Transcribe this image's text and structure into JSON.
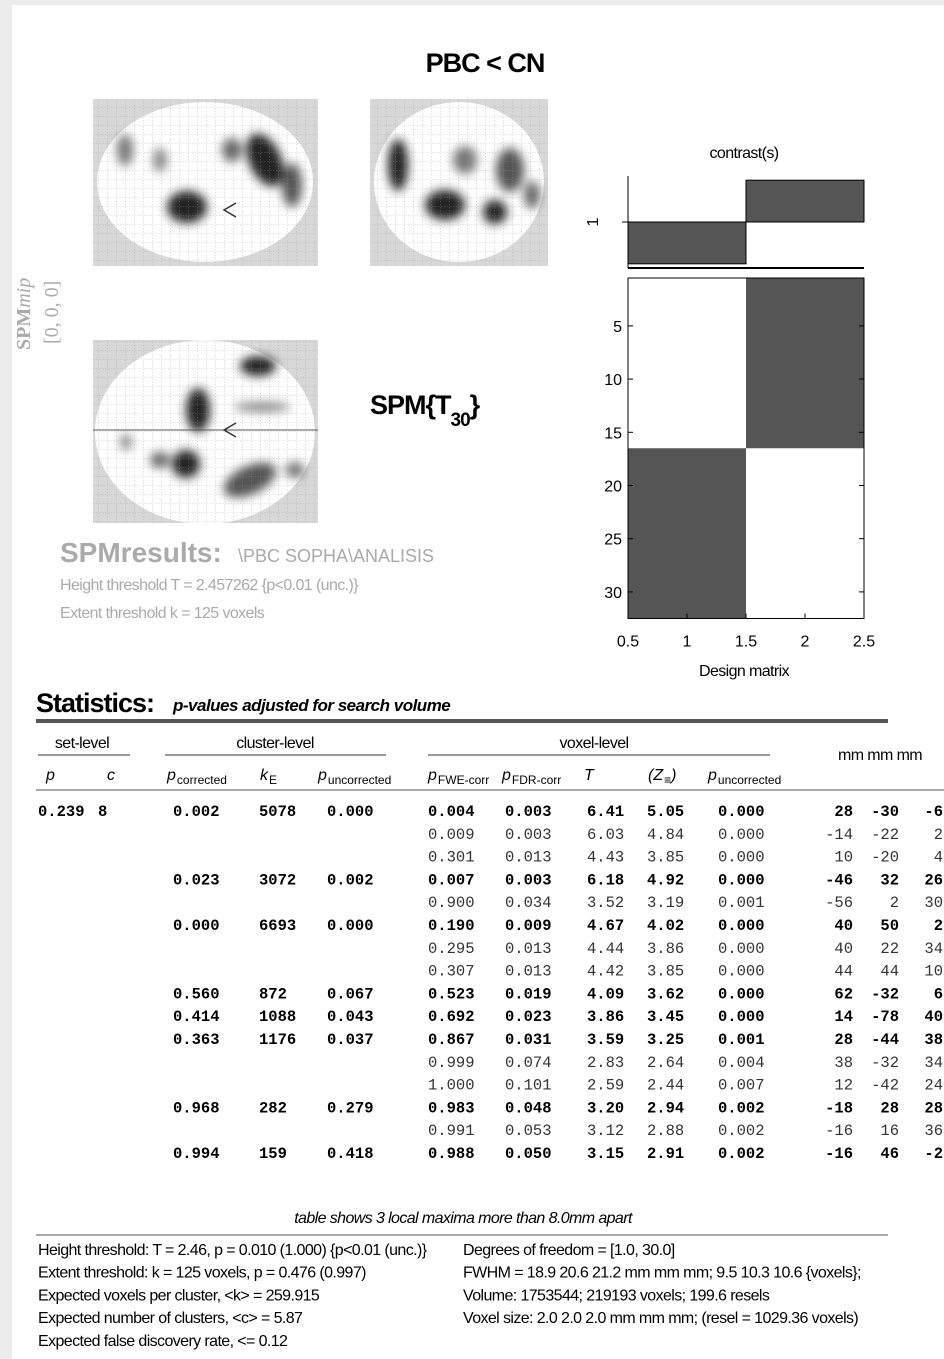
{
  "header": {
    "title": "PBC < CN"
  },
  "mip": {
    "label_main": "SPM",
    "label_italic": "mip",
    "coords": "[0, 0, 0]"
  },
  "stat": {
    "text": "SPM{T",
    "sub": "30",
    "close": "}"
  },
  "results": {
    "title": "SPMresults:",
    "path": "\\PBC SOPHA\\ANALISIS",
    "height": "Height threshold T = 2.457262  {p<0.01 (unc.)}",
    "extent": "Extent threshold k = 125 voxels"
  },
  "contrast": {
    "title": "contrast(s)",
    "label": "1",
    "values": [
      -1,
      1
    ],
    "ylim": [
      -1.1,
      1.1
    ]
  },
  "design_matrix": {
    "xlabel": "Design matrix",
    "xlim": [
      0.5,
      2.5
    ],
    "ylim": [
      0.5,
      32.5
    ],
    "xticks": [
      0.5,
      1,
      1.5,
      2,
      2.5
    ],
    "yticks": [
      5,
      10,
      15,
      20,
      25,
      30
    ],
    "blocks": [
      {
        "x": [
          0.5,
          1.5
        ],
        "y": [
          16.5,
          32.5
        ]
      },
      {
        "x": [
          1.5,
          2.5
        ],
        "y": [
          0.5,
          16.5
        ]
      }
    ]
  },
  "statistics": {
    "title": "Statistics:",
    "subtitle": "p-values adjusted for search volume",
    "groups": [
      "set-level",
      "cluster-level",
      "voxel-level"
    ],
    "coords_header": "mm mm mm",
    "columns": [
      {
        "main": "p"
      },
      {
        "main": "c"
      },
      {
        "main": "p",
        "sub": "corrected"
      },
      {
        "main": "k",
        "sub": "E"
      },
      {
        "main": "p",
        "sub": "uncorrected"
      },
      {
        "main": "p",
        "sub": "FWE-corr"
      },
      {
        "main": "p",
        "sub": "FDR-corr"
      },
      {
        "main": "T"
      },
      {
        "main": "(Z",
        "sub": "≡",
        "close": ")"
      },
      {
        "main": "p",
        "sub": "uncorrected"
      }
    ],
    "rows": [
      [
        "0.239",
        "8",
        "0.002",
        "5078",
        "0.000",
        "0.004",
        "0.003",
        "6.41",
        "5.05",
        "0.000",
        "28",
        "-30",
        "-6"
      ],
      [
        null,
        null,
        null,
        null,
        null,
        "0.009",
        "0.003",
        "6.03",
        "4.84",
        "0.000",
        "-14",
        "-22",
        "2"
      ],
      [
        null,
        null,
        null,
        null,
        null,
        "0.301",
        "0.013",
        "4.43",
        "3.85",
        "0.000",
        "10",
        "-20",
        "4"
      ],
      [
        null,
        null,
        "0.023",
        "3072",
        "0.002",
        "0.007",
        "0.003",
        "6.18",
        "4.92",
        "0.000",
        "-46",
        "32",
        "26"
      ],
      [
        null,
        null,
        null,
        null,
        null,
        "0.900",
        "0.034",
        "3.52",
        "3.19",
        "0.001",
        "-56",
        "2",
        "30"
      ],
      [
        null,
        null,
        "0.000",
        "6693",
        "0.000",
        "0.190",
        "0.009",
        "4.67",
        "4.02",
        "0.000",
        "40",
        "50",
        "2"
      ],
      [
        null,
        null,
        null,
        null,
        null,
        "0.295",
        "0.013",
        "4.44",
        "3.86",
        "0.000",
        "40",
        "22",
        "34"
      ],
      [
        null,
        null,
        null,
        null,
        null,
        "0.307",
        "0.013",
        "4.42",
        "3.85",
        "0.000",
        "44",
        "44",
        "10"
      ],
      [
        null,
        null,
        "0.560",
        "872",
        "0.067",
        "0.523",
        "0.019",
        "4.09",
        "3.62",
        "0.000",
        "62",
        "-32",
        "6"
      ],
      [
        null,
        null,
        "0.414",
        "1088",
        "0.043",
        "0.692",
        "0.023",
        "3.86",
        "3.45",
        "0.000",
        "14",
        "-78",
        "40"
      ],
      [
        null,
        null,
        "0.363",
        "1176",
        "0.037",
        "0.867",
        "0.031",
        "3.59",
        "3.25",
        "0.001",
        "28",
        "-44",
        "38"
      ],
      [
        null,
        null,
        null,
        null,
        null,
        "0.999",
        "0.074",
        "2.83",
        "2.64",
        "0.004",
        "38",
        "-32",
        "34"
      ],
      [
        null,
        null,
        null,
        null,
        null,
        "1.000",
        "0.101",
        "2.59",
        "2.44",
        "0.007",
        "12",
        "-42",
        "24"
      ],
      [
        null,
        null,
        "0.968",
        "282",
        "0.279",
        "0.983",
        "0.048",
        "3.20",
        "2.94",
        "0.002",
        "-18",
        "28",
        "28"
      ],
      [
        null,
        null,
        null,
        null,
        null,
        "0.991",
        "0.053",
        "3.12",
        "2.88",
        "0.002",
        "-16",
        "16",
        "36"
      ],
      [
        null,
        null,
        "0.994",
        "159",
        "0.418",
        "0.988",
        "0.050",
        "3.15",
        "2.91",
        "0.002",
        "-16",
        "46",
        "-2"
      ]
    ],
    "note": "table shows 3 local maxima more than 8.0mm apart",
    "footer_left": [
      "Height threshold: T = 2.46, p = 0.010 (1.000) {p<0.01 (unc.)}",
      "Extent threshold: k = 125 voxels, p = 0.476 (0.997)",
      "Expected voxels per cluster, <k> = 259.915",
      "Expected number of clusters, <c> = 5.87",
      "Expected false discovery rate, <= 0.12"
    ],
    "footer_right": [
      "Degrees of freedom = [1.0, 30.0]",
      "FWHM = 18.9 20.6 21.2 mm mm mm; 9.5 10.3 10.6 {voxels};",
      "Volume: 1753544; 219193 voxels; 199.6 resels",
      "Voxel size: 2.0 2.0 2.0 mm mm mm; (resel = 1029.36 voxels)"
    ]
  }
}
